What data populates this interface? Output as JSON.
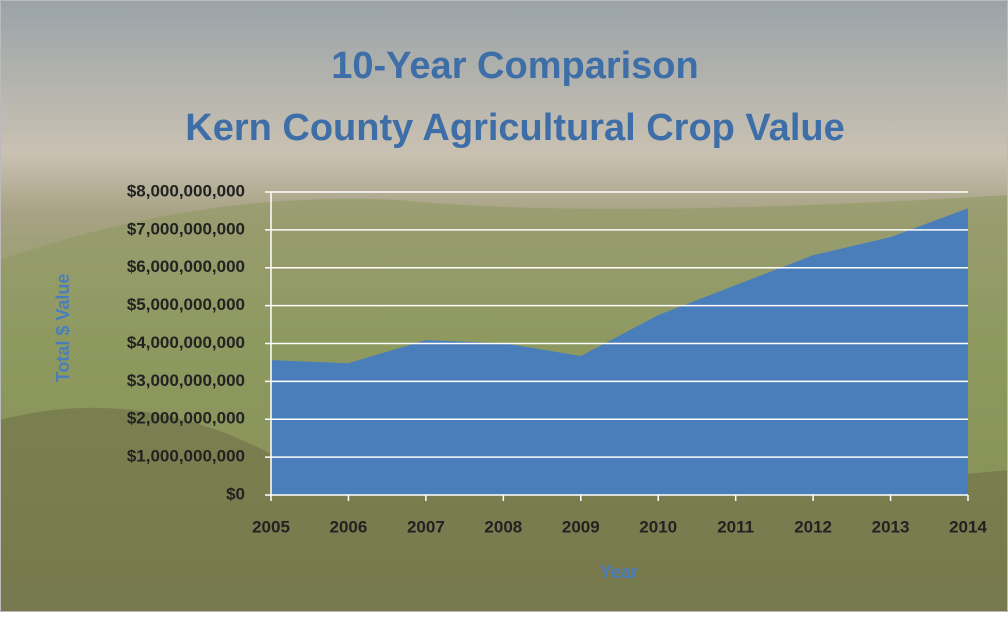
{
  "chart_data": {
    "type": "area",
    "title": [
      "10-Year Comparison",
      "Kern County Agricultural Crop Value"
    ],
    "x_label": "Year",
    "y_label": "Total $ Value",
    "categories": [
      "2005",
      "2006",
      "2007",
      "2008",
      "2009",
      "2010",
      "2011",
      "2012",
      "2013",
      "2014"
    ],
    "values": [
      3560000000,
      3480000000,
      4090000000,
      4010000000,
      3670000000,
      4750000000,
      5540000000,
      6330000000,
      6810000000,
      7570000000
    ],
    "color": "#4a7ebb",
    "ylim": [
      0,
      8000000000
    ],
    "yticks": [
      {
        "value": 0,
        "label": "$0"
      },
      {
        "value": 1000000000,
        "label": "$1,000,000,000"
      },
      {
        "value": 2000000000,
        "label": "$2,000,000,000"
      },
      {
        "value": 3000000000,
        "label": "$3,000,000,000"
      },
      {
        "value": 4000000000,
        "label": "$4,000,000,000"
      },
      {
        "value": 5000000000,
        "label": "$5,000,000,000"
      },
      {
        "value": 6000000000,
        "label": "$6,000,000,000"
      },
      {
        "value": 7000000000,
        "label": "$7,000,000,000"
      },
      {
        "value": 8000000000,
        "label": "$8,000,000,000"
      }
    ],
    "grid": true
  }
}
